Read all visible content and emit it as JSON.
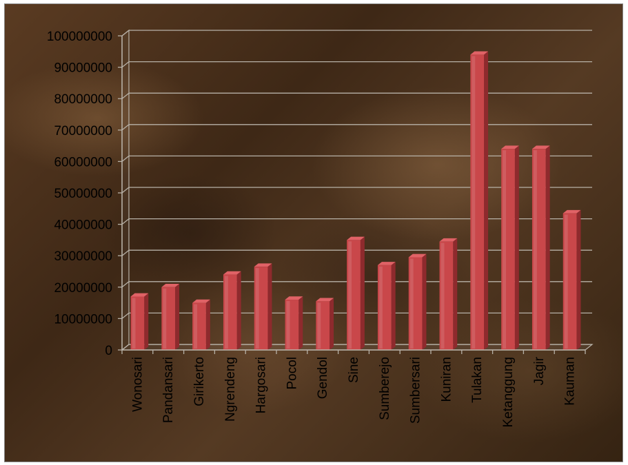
{
  "chart_data": {
    "type": "bar",
    "categories": [
      "Wonosari",
      "Pandansari",
      "Girikerto",
      "Ngrendeng",
      "Hargosari",
      "Pocol",
      "Gendol",
      "Sine",
      "Sumberejo",
      "Sumbersari",
      "Kuniran",
      "Tulakan",
      "Ketanggung",
      "Jagir",
      "Kauman"
    ],
    "values": [
      17000000,
      20000000,
      15000000,
      24000000,
      26500000,
      16000000,
      15500000,
      35000000,
      27000000,
      29500000,
      34500000,
      94000000,
      64000000,
      64000000,
      43500000
    ],
    "ylim": [
      0,
      100000000
    ],
    "yticks": [
      "0",
      "10000000",
      "20000000",
      "30000000",
      "40000000",
      "50000000",
      "60000000",
      "70000000",
      "80000000",
      "90000000",
      "100000000"
    ],
    "title": "",
    "xlabel": "",
    "ylabel": "",
    "grid": true,
    "style": "3d-column",
    "colors": {
      "bar": "#c9474a",
      "bar_light": "#e06266",
      "bar_dark": "#8e2a2d",
      "grid": "#b8b2a8",
      "background": "#4a311c"
    }
  }
}
